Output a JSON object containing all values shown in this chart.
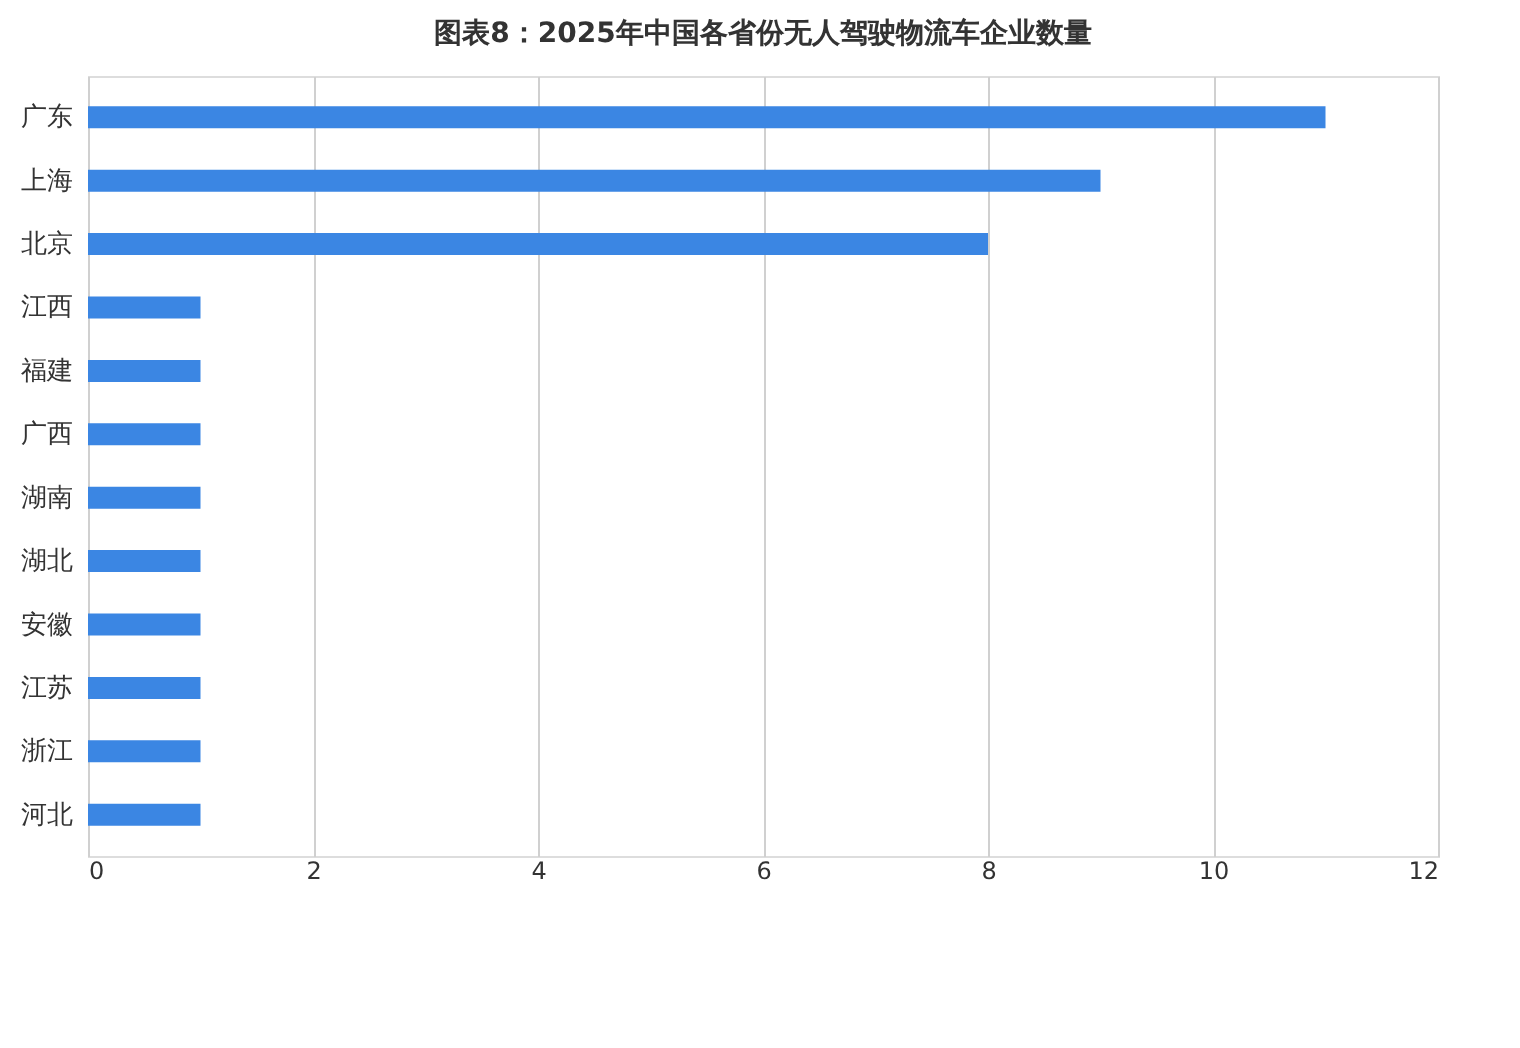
{
  "chart_data": {
    "type": "bar",
    "orientation": "horizontal",
    "title": "图表8：2025年中国各省份无人驾驶物流车企业数量",
    "categories": [
      "广东",
      "上海",
      "北京",
      "江西",
      "福建",
      "广西",
      "湖南",
      "湖北",
      "安徽",
      "江苏",
      "浙江",
      "河北"
    ],
    "values": [
      11,
      9,
      8,
      1,
      1,
      1,
      1,
      1,
      1,
      1,
      1,
      1
    ],
    "color": "#3b86e3",
    "xlim": [
      0,
      12
    ],
    "xticks": [
      0,
      2,
      4,
      6,
      8,
      10,
      12
    ],
    "grid": "x"
  }
}
